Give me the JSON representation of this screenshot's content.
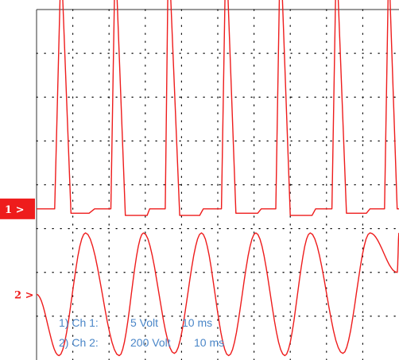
{
  "chart_data": {
    "type": "line",
    "title": "",
    "grid": true,
    "grid_divisions": {
      "x": 10,
      "y": 8
    },
    "background_color": "#ffffff",
    "grid_color": "#000000",
    "trace_color": "#ee1c1c",
    "legend_color": "#4a86c8",
    "channels": [
      {
        "marker": "1 >",
        "label": "1) Ch 1:",
        "volts": "5 Volt",
        "time": "10 ms"
      },
      {
        "marker": "2 >",
        "label": "2) Ch 2:",
        "volts": "200 Volt",
        "time": "10 ms"
      }
    ],
    "x_unit": "div",
    "y_unit": "div",
    "xlim": [
      0,
      10
    ],
    "ylim": [
      -4,
      4
    ],
    "series": [
      {
        "channel": 1,
        "points": [
          [
            0,
            -0.55
          ],
          [
            0.45,
            -0.55
          ],
          [
            0.5,
            -0.55
          ],
          [
            0.65,
            4.3
          ],
          [
            0.72,
            4.3
          ],
          [
            0.95,
            -0.65
          ],
          [
            1.0,
            -0.65
          ],
          [
            1.45,
            -0.65
          ],
          [
            1.6,
            -0.55
          ],
          [
            1.95,
            -0.55
          ],
          [
            2.05,
            -0.55
          ],
          [
            2.15,
            4.3
          ],
          [
            2.22,
            4.3
          ],
          [
            2.45,
            -0.7
          ],
          [
            2.5,
            -0.7
          ],
          [
            3.05,
            -0.7
          ],
          [
            3.12,
            -0.55
          ],
          [
            3.45,
            -0.55
          ],
          [
            3.55,
            -0.55
          ],
          [
            3.62,
            4.3
          ],
          [
            3.7,
            4.3
          ],
          [
            3.95,
            -0.7
          ],
          [
            4.0,
            -0.7
          ],
          [
            4.5,
            -0.7
          ],
          [
            4.6,
            -0.55
          ],
          [
            4.9,
            -0.55
          ],
          [
            5.1,
            -0.55
          ],
          [
            5.2,
            4.3
          ],
          [
            5.28,
            4.3
          ],
          [
            5.5,
            -0.65
          ],
          [
            5.55,
            -0.65
          ],
          [
            6.1,
            -0.65
          ],
          [
            6.2,
            -0.55
          ],
          [
            6.55,
            -0.55
          ],
          [
            6.6,
            -0.55
          ],
          [
            6.7,
            4.3
          ],
          [
            6.78,
            4.3
          ],
          [
            7.0,
            -0.7
          ],
          [
            7.05,
            -0.7
          ],
          [
            7.6,
            -0.7
          ],
          [
            7.7,
            -0.55
          ],
          [
            8.05,
            -0.55
          ],
          [
            8.15,
            -0.55
          ],
          [
            8.25,
            4.3
          ],
          [
            8.32,
            4.3
          ],
          [
            8.55,
            -0.65
          ],
          [
            8.6,
            -0.65
          ],
          [
            9.1,
            -0.65
          ],
          [
            9.2,
            -0.55
          ],
          [
            9.5,
            -0.55
          ],
          [
            9.6,
            -0.55
          ],
          [
            9.7,
            4.3
          ],
          [
            9.75,
            4.3
          ],
          [
            9.95,
            -0.55
          ],
          [
            10.0,
            -0.55
          ]
        ]
      },
      {
        "channel": 2,
        "min_div": -3.9,
        "max_div": -1.1,
        "cycles": [
          {
            "min_at": 0.62,
            "max_at": 1.35,
            "min_level": -3.9
          },
          {
            "min_at": 2.28,
            "max_at": 2.95,
            "min_level": -3.9
          },
          {
            "min_at": 3.8,
            "max_at": 4.55,
            "min_level": -3.85
          },
          {
            "min_at": 5.3,
            "max_at": 6.05,
            "min_level": -3.9
          },
          {
            "min_at": 6.85,
            "max_at": 7.55,
            "min_level": -3.9
          },
          {
            "min_at": 8.45,
            "max_at": 9.2,
            "min_level": -3.85
          },
          {
            "min_at": 9.95,
            "max_at": 10.0,
            "min_level": -2.0
          }
        ],
        "start_level": -2.5
      }
    ]
  }
}
